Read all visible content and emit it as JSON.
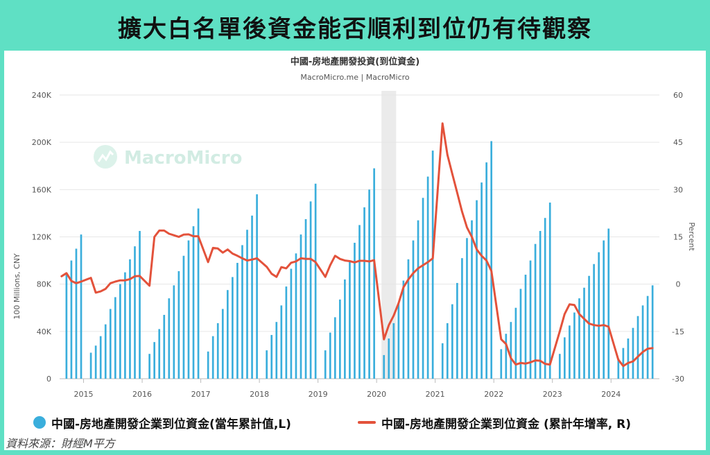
{
  "header": {
    "title": "擴大白名單後資金能否順利到位仍有待觀察"
  },
  "watermark": {
    "text": "MacroMicro"
  },
  "legend": {
    "bar_label": "中國-房地產開發企業到位資金(當年累計值,L)",
    "line_label": "中國-房地產開發企業到位資金 (累計年增率, R)"
  },
  "source": "資料來源：財經M平方",
  "colors": {
    "bars": "#3aaedc",
    "line": "#e3523b",
    "header_bg": "#5fe0c4",
    "recession": "#ebebeb"
  },
  "chart_data": {
    "type": "bar+line",
    "title": "中國-房地產開發投資(到位資金)",
    "subtitle": "MacroMicro.me | MacroMicro",
    "ylabel_left": "100 Millions, CNY",
    "ylabel_right": "Percent",
    "y_left_ticks": [
      "0",
      "40K",
      "80K",
      "120K",
      "160K",
      "200K",
      "240K"
    ],
    "y_right_ticks": [
      "-30",
      "-15",
      "0",
      "15",
      "30",
      "45",
      "60"
    ],
    "ylim_left": [
      0,
      240000
    ],
    "ylim_right": [
      -30,
      60
    ],
    "x_ticks": [
      "2015",
      "2016",
      "2017",
      "2018",
      "2019",
      "2020",
      "2021",
      "2022",
      "2023",
      "2024"
    ],
    "x_range": [
      "2014-08",
      "2024-10"
    ],
    "grid": true,
    "shaded_period": {
      "from": "2020-02",
      "to": "2020-04"
    },
    "series": [
      {
        "name": "中國-房地產開發企業到位資金(當年累計值,L)",
        "type": "bar",
        "axis": "left",
        "points": [
          [
            "2014-09",
            89000
          ],
          [
            "2014-10",
            100000
          ],
          [
            "2014-11",
            110000
          ],
          [
            "2014-12",
            122000
          ],
          [
            "2015-02",
            22000
          ],
          [
            "2015-03",
            28000
          ],
          [
            "2015-04",
            36000
          ],
          [
            "2015-05",
            46000
          ],
          [
            "2015-06",
            59000
          ],
          [
            "2015-07",
            69000
          ],
          [
            "2015-08",
            80000
          ],
          [
            "2015-09",
            90000
          ],
          [
            "2015-10",
            101000
          ],
          [
            "2015-11",
            112000
          ],
          [
            "2015-12",
            125000
          ],
          [
            "2016-02",
            21000
          ],
          [
            "2016-03",
            31000
          ],
          [
            "2016-04",
            42000
          ],
          [
            "2016-05",
            54000
          ],
          [
            "2016-06",
            68000
          ],
          [
            "2016-07",
            79000
          ],
          [
            "2016-08",
            91000
          ],
          [
            "2016-09",
            104000
          ],
          [
            "2016-10",
            117000
          ],
          [
            "2016-11",
            129000
          ],
          [
            "2016-12",
            144000
          ],
          [
            "2017-02",
            23000
          ],
          [
            "2017-03",
            36000
          ],
          [
            "2017-04",
            47000
          ],
          [
            "2017-05",
            59000
          ],
          [
            "2017-06",
            75000
          ],
          [
            "2017-07",
            86000
          ],
          [
            "2017-08",
            98000
          ],
          [
            "2017-09",
            113000
          ],
          [
            "2017-10",
            126000
          ],
          [
            "2017-11",
            138000
          ],
          [
            "2017-12",
            156000
          ],
          [
            "2018-02",
            24000
          ],
          [
            "2018-03",
            37000
          ],
          [
            "2018-04",
            48000
          ],
          [
            "2018-05",
            62000
          ],
          [
            "2018-06",
            78000
          ],
          [
            "2018-07",
            93000
          ],
          [
            "2018-08",
            106000
          ],
          [
            "2018-09",
            122000
          ],
          [
            "2018-10",
            135000
          ],
          [
            "2018-11",
            150000
          ],
          [
            "2018-12",
            165000
          ],
          [
            "2019-02",
            24000
          ],
          [
            "2019-03",
            39000
          ],
          [
            "2019-04",
            52000
          ],
          [
            "2019-05",
            67000
          ],
          [
            "2019-06",
            84000
          ],
          [
            "2019-07",
            99000
          ],
          [
            "2019-08",
            115000
          ],
          [
            "2019-09",
            130000
          ],
          [
            "2019-10",
            145000
          ],
          [
            "2019-11",
            160000
          ],
          [
            "2019-12",
            178000
          ],
          [
            "2020-02",
            20000
          ],
          [
            "2020-03",
            34000
          ],
          [
            "2020-04",
            47000
          ],
          [
            "2020-05",
            64000
          ],
          [
            "2020-06",
            83000
          ],
          [
            "2020-07",
            101000
          ],
          [
            "2020-08",
            117000
          ],
          [
            "2020-09",
            134000
          ],
          [
            "2020-10",
            153000
          ],
          [
            "2020-11",
            171000
          ],
          [
            "2020-12",
            193000
          ],
          [
            "2021-02",
            30000
          ],
          [
            "2021-03",
            47000
          ],
          [
            "2021-04",
            63000
          ],
          [
            "2021-05",
            81000
          ],
          [
            "2021-06",
            102000
          ],
          [
            "2021-07",
            119000
          ],
          [
            "2021-08",
            134000
          ],
          [
            "2021-09",
            151000
          ],
          [
            "2021-10",
            166000
          ],
          [
            "2021-11",
            183000
          ],
          [
            "2021-12",
            201000
          ],
          [
            "2022-02",
            25000
          ],
          [
            "2022-03",
            38000
          ],
          [
            "2022-04",
            48000
          ],
          [
            "2022-05",
            60000
          ],
          [
            "2022-06",
            76000
          ],
          [
            "2022-07",
            88000
          ],
          [
            "2022-08",
            100000
          ],
          [
            "2022-09",
            114000
          ],
          [
            "2022-10",
            125000
          ],
          [
            "2022-11",
            136000
          ],
          [
            "2022-12",
            149000
          ],
          [
            "2023-02",
            21000
          ],
          [
            "2023-03",
            35000
          ],
          [
            "2023-04",
            45000
          ],
          [
            "2023-05",
            56000
          ],
          [
            "2023-06",
            68000
          ],
          [
            "2023-07",
            77000
          ],
          [
            "2023-08",
            87000
          ],
          [
            "2023-09",
            97000
          ],
          [
            "2023-10",
            107000
          ],
          [
            "2023-11",
            117000
          ],
          [
            "2023-12",
            127000
          ],
          [
            "2024-02",
            17000
          ],
          [
            "2024-03",
            26000
          ],
          [
            "2024-04",
            34000
          ],
          [
            "2024-05",
            43000
          ],
          [
            "2024-06",
            53000
          ],
          [
            "2024-07",
            62000
          ],
          [
            "2024-08",
            70000
          ],
          [
            "2024-09",
            79000
          ]
        ]
      },
      {
        "name": "中國-房地產開發企業到位資金 (累計年增率, R)",
        "type": "line",
        "axis": "right",
        "points": [
          [
            "2014-08",
            2.5
          ],
          [
            "2014-09",
            3.5
          ],
          [
            "2014-10",
            1.0
          ],
          [
            "2014-11",
            0.3
          ],
          [
            "2014-12",
            0.8
          ],
          [
            "2015-02",
            2.0
          ],
          [
            "2015-03",
            -2.7
          ],
          [
            "2015-04",
            -2.3
          ],
          [
            "2015-05",
            -1.5
          ],
          [
            "2015-06",
            0.3
          ],
          [
            "2015-07",
            0.8
          ],
          [
            "2015-08",
            1.2
          ],
          [
            "2015-09",
            1.2
          ],
          [
            "2015-10",
            1.6
          ],
          [
            "2015-11",
            2.5
          ],
          [
            "2015-12",
            2.6
          ],
          [
            "2016-02",
            -0.5
          ],
          [
            "2016-03",
            15.0
          ],
          [
            "2016-04",
            17.0
          ],
          [
            "2016-05",
            17.0
          ],
          [
            "2016-06",
            16.0
          ],
          [
            "2016-07",
            15.5
          ],
          [
            "2016-08",
            15.0
          ],
          [
            "2016-09",
            15.7
          ],
          [
            "2016-10",
            15.8
          ],
          [
            "2016-11",
            15.2
          ],
          [
            "2016-12",
            15.2
          ],
          [
            "2017-02",
            7.0
          ],
          [
            "2017-03",
            11.5
          ],
          [
            "2017-04",
            11.3
          ],
          [
            "2017-05",
            10.0
          ],
          [
            "2017-06",
            11.0
          ],
          [
            "2017-07",
            9.7
          ],
          [
            "2017-08",
            9.0
          ],
          [
            "2017-09",
            8.2
          ],
          [
            "2017-10",
            7.5
          ],
          [
            "2017-11",
            7.8
          ],
          [
            "2017-12",
            8.2
          ],
          [
            "2018-02",
            5.5
          ],
          [
            "2018-03",
            3.3
          ],
          [
            "2018-04",
            2.3
          ],
          [
            "2018-05",
            5.4
          ],
          [
            "2018-06",
            5.0
          ],
          [
            "2018-07",
            6.8
          ],
          [
            "2018-08",
            7.2
          ],
          [
            "2018-09",
            8.2
          ],
          [
            "2018-10",
            8.0
          ],
          [
            "2018-11",
            8.0
          ],
          [
            "2018-12",
            7.0
          ],
          [
            "2019-02",
            2.3
          ],
          [
            "2019-03",
            6.0
          ],
          [
            "2019-04",
            9.0
          ],
          [
            "2019-05",
            8.0
          ],
          [
            "2019-06",
            7.5
          ],
          [
            "2019-07",
            7.3
          ],
          [
            "2019-08",
            6.9
          ],
          [
            "2019-09",
            7.4
          ],
          [
            "2019-10",
            7.4
          ],
          [
            "2019-11",
            7.2
          ],
          [
            "2019-12",
            7.6
          ],
          [
            "2020-02",
            -17.5
          ],
          [
            "2020-03",
            -13.0
          ],
          [
            "2020-04",
            -10.0
          ],
          [
            "2020-05",
            -6.0
          ],
          [
            "2020-06",
            -1.0
          ],
          [
            "2020-07",
            1.5
          ],
          [
            "2020-08",
            3.5
          ],
          [
            "2020-09",
            5.0
          ],
          [
            "2020-10",
            6.0
          ],
          [
            "2020-11",
            7.0
          ],
          [
            "2020-12",
            8.2
          ],
          [
            "2021-02",
            51.0
          ],
          [
            "2021-03",
            41.0
          ],
          [
            "2021-04",
            35.0
          ],
          [
            "2021-05",
            29.0
          ],
          [
            "2021-06",
            23.0
          ],
          [
            "2021-07",
            18.0
          ],
          [
            "2021-08",
            15.0
          ],
          [
            "2021-09",
            11.0
          ],
          [
            "2021-10",
            9.0
          ],
          [
            "2021-11",
            7.5
          ],
          [
            "2021-12",
            4.2
          ],
          [
            "2022-02",
            -17.5
          ],
          [
            "2022-03",
            -19.0
          ],
          [
            "2022-04",
            -23.5
          ],
          [
            "2022-05",
            -25.5
          ],
          [
            "2022-06",
            -25.0
          ],
          [
            "2022-07",
            -25.2
          ],
          [
            "2022-08",
            -24.8
          ],
          [
            "2022-09",
            -24.2
          ],
          [
            "2022-10",
            -24.3
          ],
          [
            "2022-11",
            -25.3
          ],
          [
            "2022-12",
            -25.5
          ],
          [
            "2023-02",
            -15.0
          ],
          [
            "2023-03",
            -9.5
          ],
          [
            "2023-04",
            -6.4
          ],
          [
            "2023-05",
            -6.6
          ],
          [
            "2023-06",
            -9.5
          ],
          [
            "2023-07",
            -11.0
          ],
          [
            "2023-08",
            -12.5
          ],
          [
            "2023-09",
            -13.0
          ],
          [
            "2023-10",
            -13.2
          ],
          [
            "2023-11",
            -13.0
          ],
          [
            "2023-12",
            -13.5
          ],
          [
            "2024-02",
            -24.0
          ],
          [
            "2024-03",
            -26.0
          ],
          [
            "2024-04",
            -25.0
          ],
          [
            "2024-05",
            -24.5
          ],
          [
            "2024-06",
            -23.0
          ],
          [
            "2024-07",
            -21.5
          ],
          [
            "2024-08",
            -20.5
          ],
          [
            "2024-09",
            -20.3
          ]
        ]
      }
    ]
  }
}
